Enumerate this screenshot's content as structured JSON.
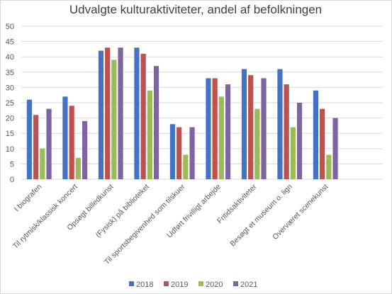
{
  "chart_data": {
    "type": "bar",
    "title": "Udvalgte kulturaktiviteter, andel af befolkningen",
    "xlabel": "",
    "ylabel": "",
    "ylim": [
      0,
      50
    ],
    "yticks": [
      0,
      5,
      10,
      15,
      20,
      25,
      30,
      35,
      40,
      45,
      50
    ],
    "grid": true,
    "legend_position": "bottom",
    "categories": [
      "I biografen",
      "Til rytmisk/klassisk koncert",
      "Opsøgt billedkunst",
      "(Fysisk) på biblioteket",
      "Til sportsbegivenhed som tilskuer",
      "Udført frivilligt arbejde",
      "Fritidsaktiviteter",
      "Besøgt et museum o. lign",
      "Overværet scenekunst"
    ],
    "series": [
      {
        "name": "2018",
        "color": "#4472c4",
        "values": [
          26,
          27,
          42,
          43,
          18,
          33,
          36,
          36,
          29
        ]
      },
      {
        "name": "2019",
        "color": "#c0504d",
        "values": [
          21,
          24,
          43,
          41,
          17,
          33,
          34,
          31,
          23
        ]
      },
      {
        "name": "2020",
        "color": "#9bbb59",
        "values": [
          10,
          7,
          39,
          29,
          8,
          27,
          23,
          17,
          8
        ]
      },
      {
        "name": "2021",
        "color": "#8064a2",
        "values": [
          23,
          19,
          43,
          37,
          17,
          31,
          33,
          25,
          20
        ]
      }
    ]
  }
}
